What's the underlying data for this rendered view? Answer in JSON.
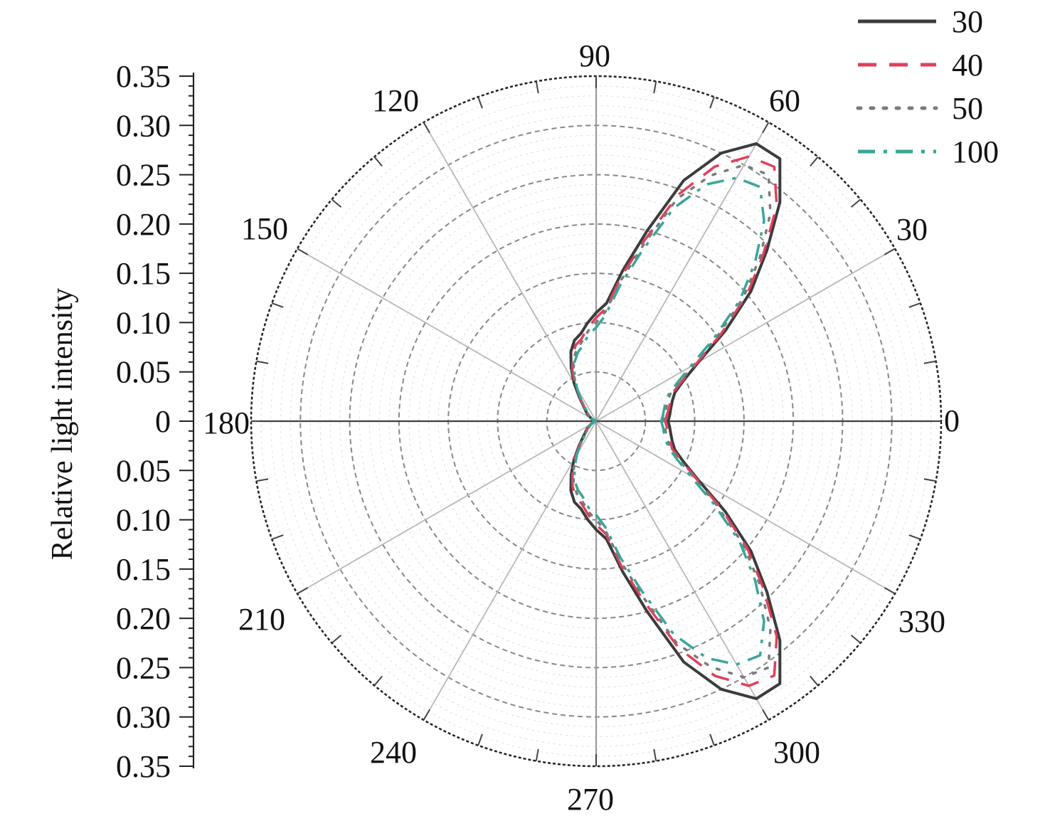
{
  "chart_data": {
    "type": "line",
    "projection": "polar",
    "ylabel": "Relative light intensity",
    "radial_range": [
      0,
      0.35
    ],
    "radial_tick_labels": [
      "0",
      "0.05",
      "0.10",
      "0.15",
      "0.20",
      "0.25",
      "0.30",
      "0.35"
    ],
    "angle_tick_labels": [
      "0",
      "30",
      "60",
      "90",
      "120",
      "150",
      "180",
      "210",
      "240",
      "270",
      "300",
      "330"
    ],
    "angle_unit": "degrees",
    "grid": true,
    "legend_position": "top-right",
    "angles": [
      0,
      5,
      10,
      15,
      20,
      25,
      30,
      35,
      40,
      45,
      50,
      55,
      60,
      65,
      70,
      75,
      80,
      85,
      90,
      95,
      100,
      105,
      110,
      115,
      120,
      125,
      130,
      135,
      140,
      145,
      150,
      155,
      160,
      165,
      170,
      175,
      180
    ],
    "series": [
      {
        "name": "30",
        "color": "#3c3c3c",
        "dash": "solid",
        "values": [
          0.073,
          0.075,
          0.077,
          0.08,
          0.085,
          0.098,
          0.12,
          0.16,
          0.205,
          0.245,
          0.29,
          0.325,
          0.325,
          0.3,
          0.26,
          0.2,
          0.155,
          0.12,
          0.11,
          0.1,
          0.09,
          0.085,
          0.075,
          0.06,
          0.045,
          0.03,
          0.02,
          0.015,
          0.012,
          0.008,
          0.006,
          0.004,
          0.003,
          0.002,
          0.001,
          0.001,
          0.0
        ]
      },
      {
        "name": "40",
        "color": "#e0405a",
        "dash": "long-dash",
        "values": [
          0.07,
          0.072,
          0.075,
          0.078,
          0.082,
          0.096,
          0.118,
          0.155,
          0.2,
          0.24,
          0.285,
          0.315,
          0.31,
          0.285,
          0.245,
          0.19,
          0.15,
          0.115,
          0.105,
          0.095,
          0.085,
          0.08,
          0.07,
          0.057,
          0.043,
          0.028,
          0.019,
          0.014,
          0.011,
          0.008,
          0.006,
          0.004,
          0.003,
          0.002,
          0.001,
          0.001,
          0.0
        ]
      },
      {
        "name": "50",
        "color": "#7a7a7a",
        "dash": "dotted",
        "values": [
          0.068,
          0.07,
          0.072,
          0.075,
          0.08,
          0.093,
          0.115,
          0.15,
          0.195,
          0.235,
          0.275,
          0.305,
          0.3,
          0.275,
          0.24,
          0.185,
          0.145,
          0.112,
          0.1,
          0.092,
          0.082,
          0.076,
          0.067,
          0.054,
          0.041,
          0.027,
          0.018,
          0.013,
          0.01,
          0.007,
          0.005,
          0.004,
          0.003,
          0.002,
          0.001,
          0.001,
          0.0
        ]
      },
      {
        "name": "100",
        "color": "#3aa598",
        "dash": "dash-dot",
        "values": [
          0.066,
          0.068,
          0.07,
          0.073,
          0.078,
          0.09,
          0.11,
          0.145,
          0.19,
          0.228,
          0.265,
          0.29,
          0.285,
          0.265,
          0.23,
          0.178,
          0.14,
          0.108,
          0.095,
          0.088,
          0.078,
          0.072,
          0.064,
          0.052,
          0.039,
          0.026,
          0.017,
          0.012,
          0.009,
          0.007,
          0.005,
          0.004,
          0.003,
          0.002,
          0.001,
          0.001,
          0.0
        ]
      }
    ]
  }
}
